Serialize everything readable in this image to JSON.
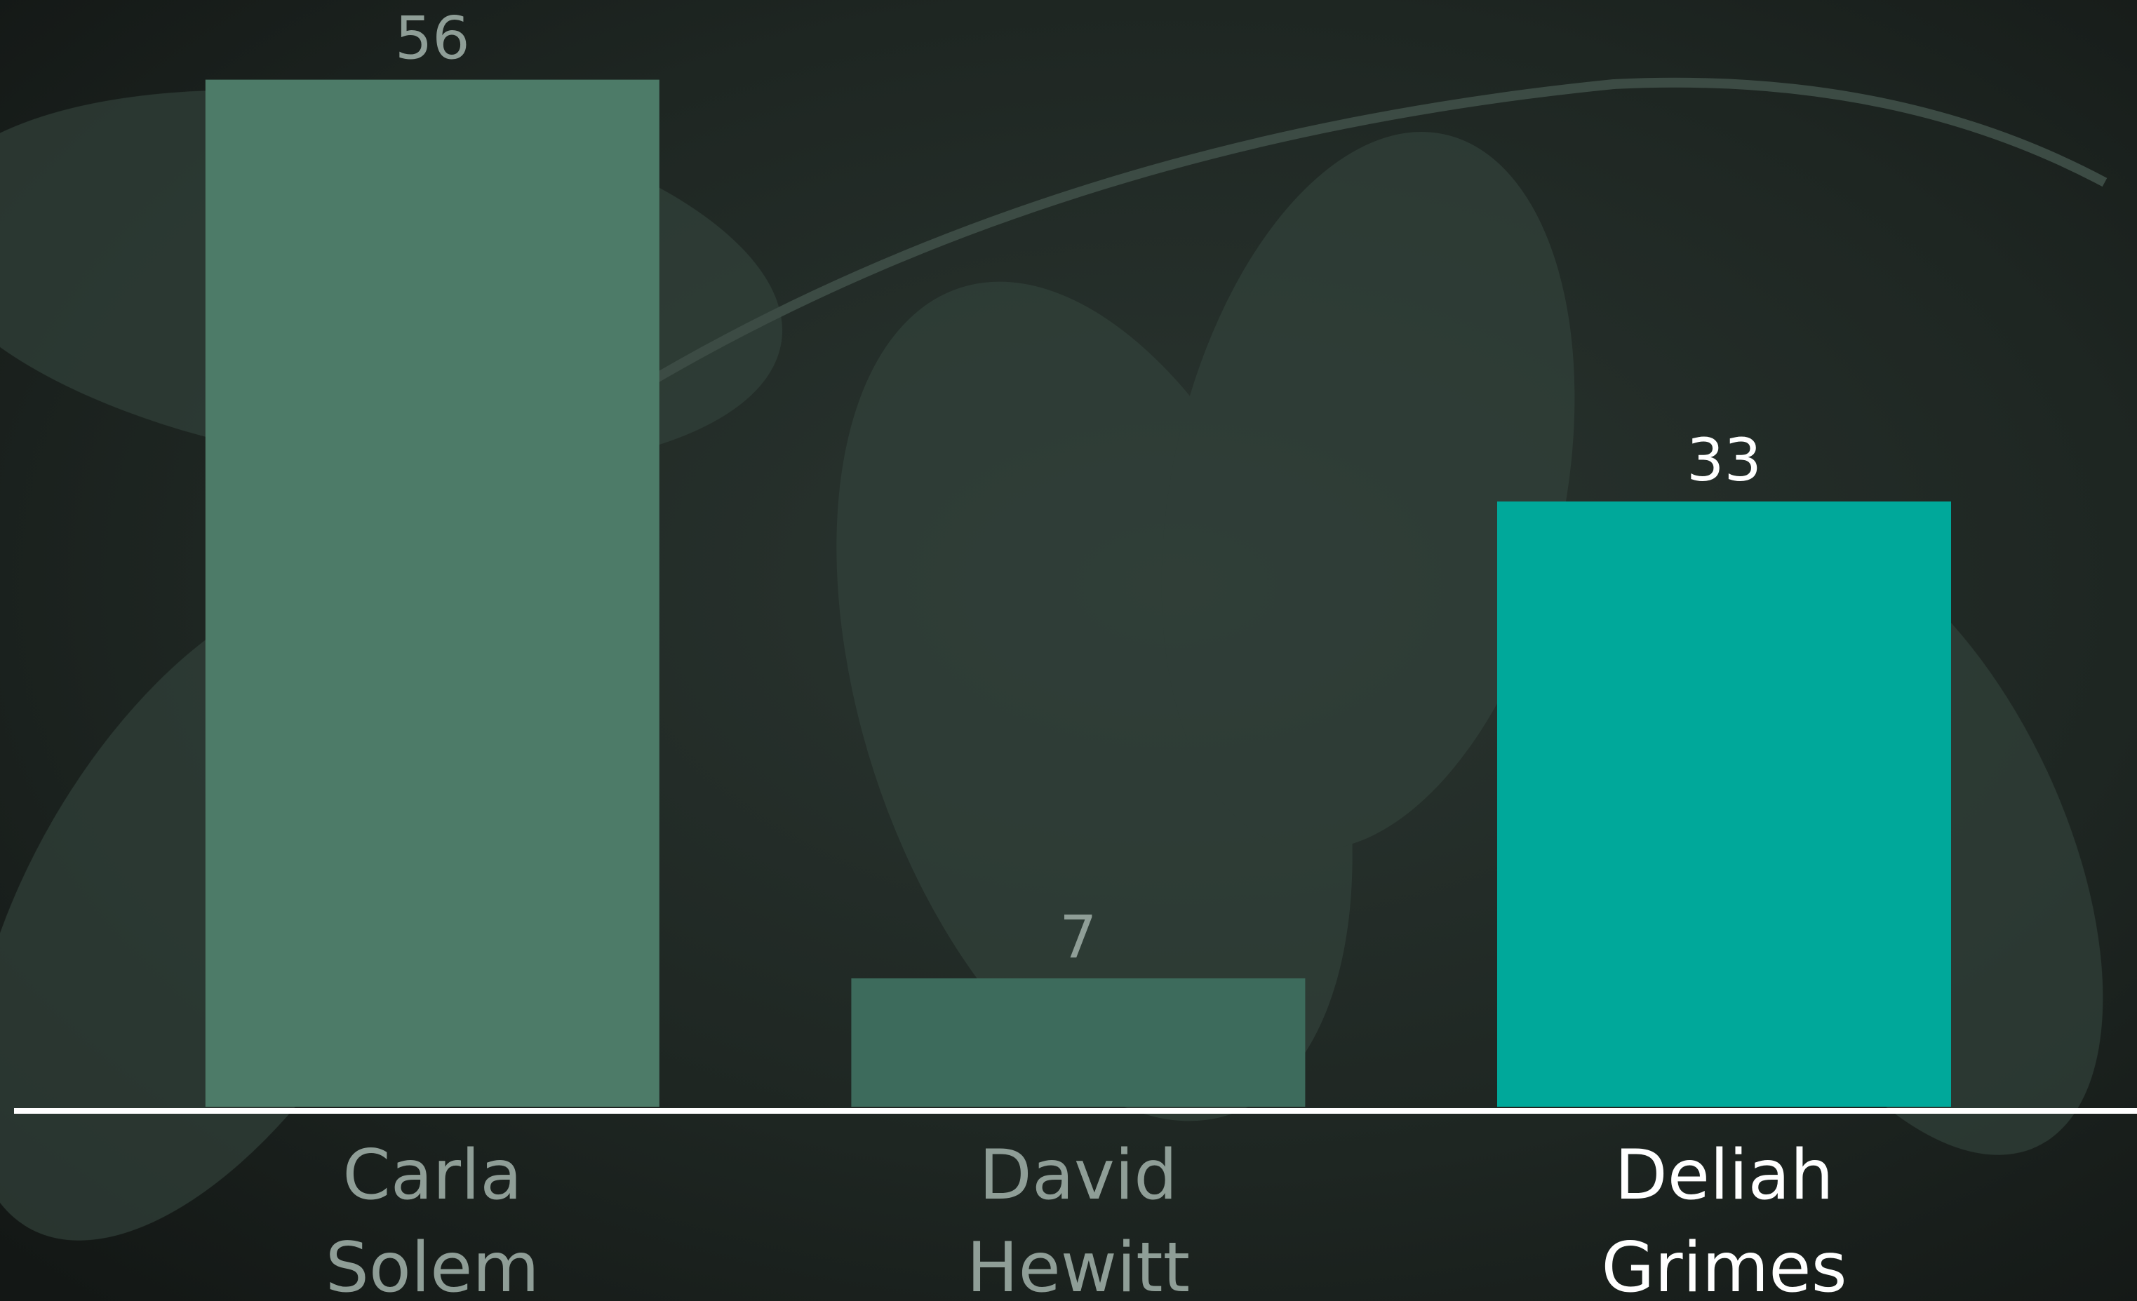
{
  "chart_data": {
    "type": "bar",
    "categories": [
      "Carla Solem",
      "David Hewitt",
      "Deliah Grimes"
    ],
    "values": [
      56,
      7,
      33
    ],
    "colors": [
      "#4d7b68",
      "#3d6b5c",
      "#00a89a"
    ],
    "label_colors": [
      "#8f9e97",
      "#8f9e97",
      "#ffffff"
    ],
    "ylim": [
      0,
      60
    ]
  }
}
